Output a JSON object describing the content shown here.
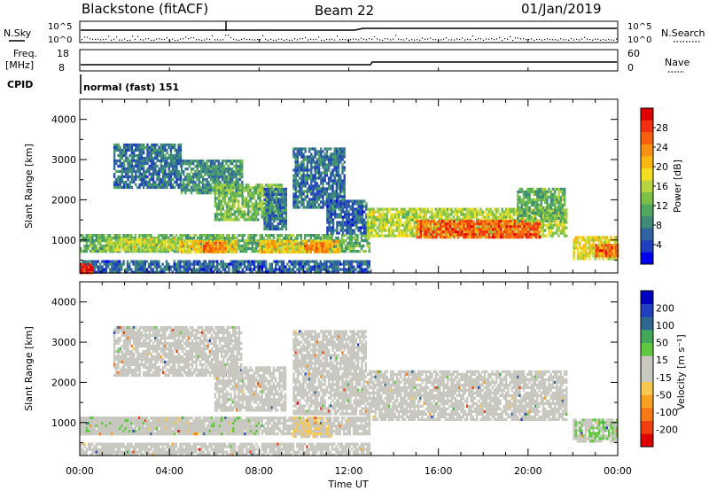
{
  "header": {
    "radar": "Blackstone (fitACF)",
    "beam": "Beam 22",
    "date": "01/Jan/2019"
  },
  "top_panels": {
    "nsky_label": "N.Sky",
    "nsky_ticks": [
      "10^5",
      "10^0"
    ],
    "nsearch_label": "N.Search",
    "nsearch_ticks": [
      "10^5",
      "10^0"
    ],
    "freq_label": "Freq.",
    "freq_unit": "[MHz]",
    "freq_ticks": [
      "18",
      "8"
    ],
    "nave_label": "Nave",
    "nave_ticks": [
      "60",
      "0"
    ],
    "cpid_label": "CPID",
    "cpid_value": "normal (fast) 151"
  },
  "colors": {
    "power_scale": [
      "#0000ee",
      "#1f3fbf",
      "#2f64a0",
      "#3f8a78",
      "#4fa860",
      "#7cc048",
      "#b8d440",
      "#f0e020",
      "#f8b810",
      "#f89010",
      "#f86010",
      "#f03010",
      "#e00000"
    ],
    "velocity_scale": [
      "#e00000",
      "#f04010",
      "#f87818",
      "#f8a020",
      "#f8c850",
      "#c8c8c0",
      "#c8c8c0",
      "#60c840",
      "#40a858",
      "#306890",
      "#2040c0",
      "#0000c0"
    ]
  },
  "chart_data": [
    {
      "type": "heatmap",
      "panel": "power",
      "ylabel": "Slant Range [km]",
      "yticks": [
        "1000",
        "2000",
        "3000",
        "4000"
      ],
      "ylim": [
        180,
        4500
      ],
      "xlim": [
        0,
        24
      ],
      "colorbar_label": "Power [dB]",
      "colorbar_ticks": [
        "4",
        "8",
        "12",
        "16",
        "20",
        "24",
        "28"
      ],
      "colorbar_range": [
        0,
        32
      ],
      "regions": [
        {
          "t0": 0.0,
          "t1": 12.9,
          "r0": 180,
          "r1": 500,
          "v": 6
        },
        {
          "t0": 0.0,
          "t1": 0.6,
          "r0": 180,
          "r1": 420,
          "v": 30
        },
        {
          "t0": 0.0,
          "t1": 12.9,
          "r0": 700,
          "r1": 1150,
          "v": 12
        },
        {
          "t0": 1.2,
          "t1": 4.5,
          "r0": 750,
          "r1": 1050,
          "v": 16
        },
        {
          "t0": 4.5,
          "t1": 7.0,
          "r0": 700,
          "r1": 1000,
          "v": 20
        },
        {
          "t0": 8.0,
          "t1": 11.5,
          "r0": 700,
          "r1": 1000,
          "v": 20
        },
        {
          "t0": 5.5,
          "t1": 6.5,
          "r0": 750,
          "r1": 950,
          "v": 25
        },
        {
          "t0": 10.0,
          "t1": 11.0,
          "r0": 750,
          "r1": 950,
          "v": 24
        },
        {
          "t0": 1.5,
          "t1": 4.5,
          "r0": 2300,
          "r1": 3400,
          "v": 7
        },
        {
          "t0": 4.5,
          "t1": 7.2,
          "r0": 2200,
          "r1": 3000,
          "v": 9
        },
        {
          "t0": 6.0,
          "t1": 9.0,
          "r0": 1500,
          "r1": 2400,
          "v": 13
        },
        {
          "t0": 8.2,
          "t1": 9.2,
          "r0": 1300,
          "r1": 2300,
          "v": 7
        },
        {
          "t0": 9.5,
          "t1": 11.8,
          "r0": 1800,
          "r1": 3300,
          "v": 7
        },
        {
          "t0": 11.0,
          "t1": 12.8,
          "r0": 1200,
          "r1": 2000,
          "v": 6
        },
        {
          "t0": 12.8,
          "t1": 21.7,
          "r0": 1100,
          "r1": 1800,
          "v": 16
        },
        {
          "t0": 15.0,
          "t1": 20.5,
          "r0": 1100,
          "r1": 1500,
          "v": 26
        },
        {
          "t0": 19.5,
          "t1": 21.6,
          "r0": 1500,
          "r1": 2300,
          "v": 12
        },
        {
          "t0": 22.0,
          "t1": 24.0,
          "r0": 550,
          "r1": 1100,
          "v": 18
        },
        {
          "t0": 23.0,
          "t1": 24.0,
          "r0": 600,
          "r1": 900,
          "v": 26
        }
      ]
    },
    {
      "type": "heatmap",
      "panel": "velocity",
      "ylabel": "Slant Range [km]",
      "yticks": [
        "1000",
        "2000",
        "3000",
        "4000"
      ],
      "ylim": [
        180,
        4500
      ],
      "xlim": [
        0,
        24
      ],
      "colorbar_label": "Velocity [m s⁻¹]",
      "colorbar_ticks": [
        "200",
        "100",
        "50",
        "15",
        "-15",
        "-50",
        "-100",
        "-200"
      ],
      "xlabel": "Time UT",
      "xticks": [
        "00:00",
        "04:00",
        "08:00",
        "12:00",
        "16:00",
        "20:00",
        "00:00"
      ],
      "regions": [
        {
          "t0": 0.0,
          "t1": 12.9,
          "r0": 700,
          "r1": 1150,
          "v": 0
        },
        {
          "t0": 0.0,
          "t1": 3.5,
          "r0": 700,
          "r1": 1150,
          "v": 30
        },
        {
          "t0": 3.5,
          "t1": 5.5,
          "r0": 700,
          "r1": 1150,
          "v": -30
        },
        {
          "t0": 5.5,
          "t1": 8.0,
          "r0": 700,
          "r1": 1150,
          "v": 30
        },
        {
          "t0": 9.5,
          "t1": 11.2,
          "r0": 650,
          "r1": 1150,
          "v": -40
        },
        {
          "t0": 0.0,
          "t1": 12.9,
          "r0": 180,
          "r1": 500,
          "v": -20
        },
        {
          "t0": 1.5,
          "t1": 7.2,
          "r0": 2200,
          "r1": 3400,
          "v": 0
        },
        {
          "t0": 6.0,
          "t1": 9.2,
          "r0": 1300,
          "r1": 2400,
          "v": 0
        },
        {
          "t0": 9.5,
          "t1": 12.8,
          "r0": 1200,
          "r1": 3300,
          "v": 0
        },
        {
          "t0": 12.8,
          "t1": 21.7,
          "r0": 1100,
          "r1": 2300,
          "v": 0
        },
        {
          "t0": 22.0,
          "t1": 24.0,
          "r0": 550,
          "r1": 1100,
          "v": 40
        }
      ]
    }
  ]
}
